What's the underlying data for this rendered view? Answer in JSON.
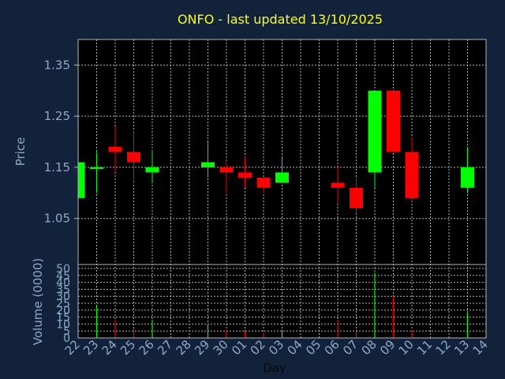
{
  "chart_data": {
    "type": "candlestick",
    "title": "ONFO - last updated 13/10/2025",
    "xlabel": "Day",
    "ylabel": "Price",
    "volume_label": "Volume (0000)",
    "x_tick_labels": [
      "22",
      "23",
      "24",
      "25",
      "26",
      "27",
      "28",
      "29",
      "30",
      "01",
      "02",
      "03",
      "04",
      "05",
      "06",
      "07",
      "08",
      "09",
      "10",
      "11",
      "12",
      "13",
      "14"
    ],
    "price_ticks": [
      "1.35",
      "1.25",
      "1.15",
      "1.05"
    ],
    "price_tick_values": [
      1.35,
      1.25,
      1.15,
      1.05
    ],
    "price_ylim": [
      0.96,
      1.4
    ],
    "volume_ticks": [
      "50",
      "45",
      "40",
      "35",
      "30",
      "25",
      "20",
      "15",
      "10",
      "5",
      "0"
    ],
    "volume_tick_values": [
      50,
      45,
      40,
      35,
      30,
      25,
      20,
      15,
      10,
      5,
      0
    ],
    "volume_ylim": [
      0,
      50
    ],
    "grid": true,
    "colors": {
      "up": "#00ff00",
      "down": "#ff0000",
      "background": "#11223a",
      "plot_background": "#000000",
      "grid": "#b4b4b4",
      "text": "#8fa9c8",
      "title": "#ffff00"
    },
    "candles": [
      {
        "day": "22",
        "open": 1.09,
        "high": 1.16,
        "low": 1.09,
        "close": 1.16,
        "volume": 0
      },
      {
        "day": "23",
        "open": 1.15,
        "high": 1.18,
        "low": 1.1,
        "close": 1.15,
        "volume": 23
      },
      {
        "day": "24",
        "open": 1.19,
        "high": 1.23,
        "low": 1.14,
        "close": 1.18,
        "volume": 13
      },
      {
        "day": "25",
        "open": 1.18,
        "high": 1.22,
        "low": 1.12,
        "close": 1.16,
        "volume": 7
      },
      {
        "day": "26",
        "open": 1.14,
        "high": 1.18,
        "low": 1.12,
        "close": 1.15,
        "volume": 13
      },
      {
        "day": "29",
        "open": 1.15,
        "high": 1.2,
        "low": 1.13,
        "close": 1.16,
        "volume": 10
      },
      {
        "day": "30",
        "open": 1.15,
        "high": 1.16,
        "low": 1.1,
        "close": 1.14,
        "volume": 6
      },
      {
        "day": "01",
        "open": 1.14,
        "high": 1.17,
        "low": 1.11,
        "close": 1.13,
        "volume": 5
      },
      {
        "day": "02",
        "open": 1.13,
        "high": 1.13,
        "low": 1.1,
        "close": 1.11,
        "volume": 3
      },
      {
        "day": "03",
        "open": 1.12,
        "high": 1.17,
        "low": 1.12,
        "close": 1.14,
        "volume": 5
      },
      {
        "day": "06",
        "open": 1.12,
        "high": 1.15,
        "low": 1.08,
        "close": 1.11,
        "volume": 13
      },
      {
        "day": "07",
        "open": 1.11,
        "high": 1.13,
        "low": 1.06,
        "close": 1.07,
        "volume": 5
      },
      {
        "day": "08",
        "open": 1.14,
        "high": 1.3,
        "low": 1.11,
        "close": 1.3,
        "volume": 47
      },
      {
        "day": "09",
        "open": 1.3,
        "high": 1.3,
        "low": 1.18,
        "close": 1.18,
        "volume": 30
      },
      {
        "day": "10",
        "open": 1.18,
        "high": 1.21,
        "low": 1.09,
        "close": 1.09,
        "volume": 6
      },
      {
        "day": "13",
        "open": 1.11,
        "high": 1.19,
        "low": 1.1,
        "close": 1.15,
        "volume": 18
      }
    ]
  }
}
